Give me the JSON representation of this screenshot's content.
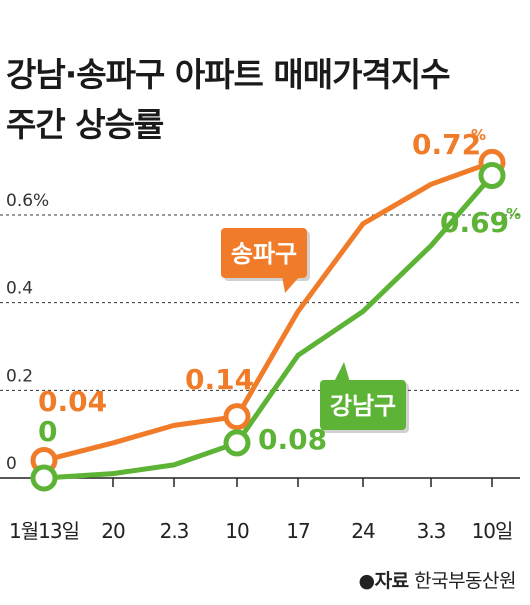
{
  "title_line1": "강남·송파구 아파트 매매가격지수",
  "title_line2": "주간 상승률",
  "source_label": "●자료",
  "source_name": "한국부동산원",
  "chart_data": {
    "type": "line",
    "categories": [
      "1월13일",
      "20",
      "2.3",
      "10",
      "17",
      "24",
      "3.3",
      "10일"
    ],
    "series": [
      {
        "name": "송파구",
        "color": "#f07c2a",
        "values": [
          0.04,
          0.08,
          0.12,
          0.14,
          0.38,
          0.58,
          0.67,
          0.72
        ],
        "value_labels": [
          "0.04",
          "",
          "",
          "0.14",
          "",
          "",
          "",
          "0.72%"
        ]
      },
      {
        "name": "강남구",
        "color": "#5cb335",
        "values": [
          0.0,
          0.01,
          0.03,
          0.08,
          0.28,
          0.38,
          0.53,
          0.69
        ],
        "value_labels": [
          "0",
          "",
          "",
          "0.08",
          "",
          "",
          "",
          "0.69 %"
        ]
      }
    ],
    "ytick_labels": [
      "0",
      "0.2",
      "0.4",
      "0.6%"
    ],
    "yticks": [
      0,
      0.2,
      0.4,
      0.6
    ],
    "ylim": [
      0,
      0.65
    ],
    "grid": true
  }
}
